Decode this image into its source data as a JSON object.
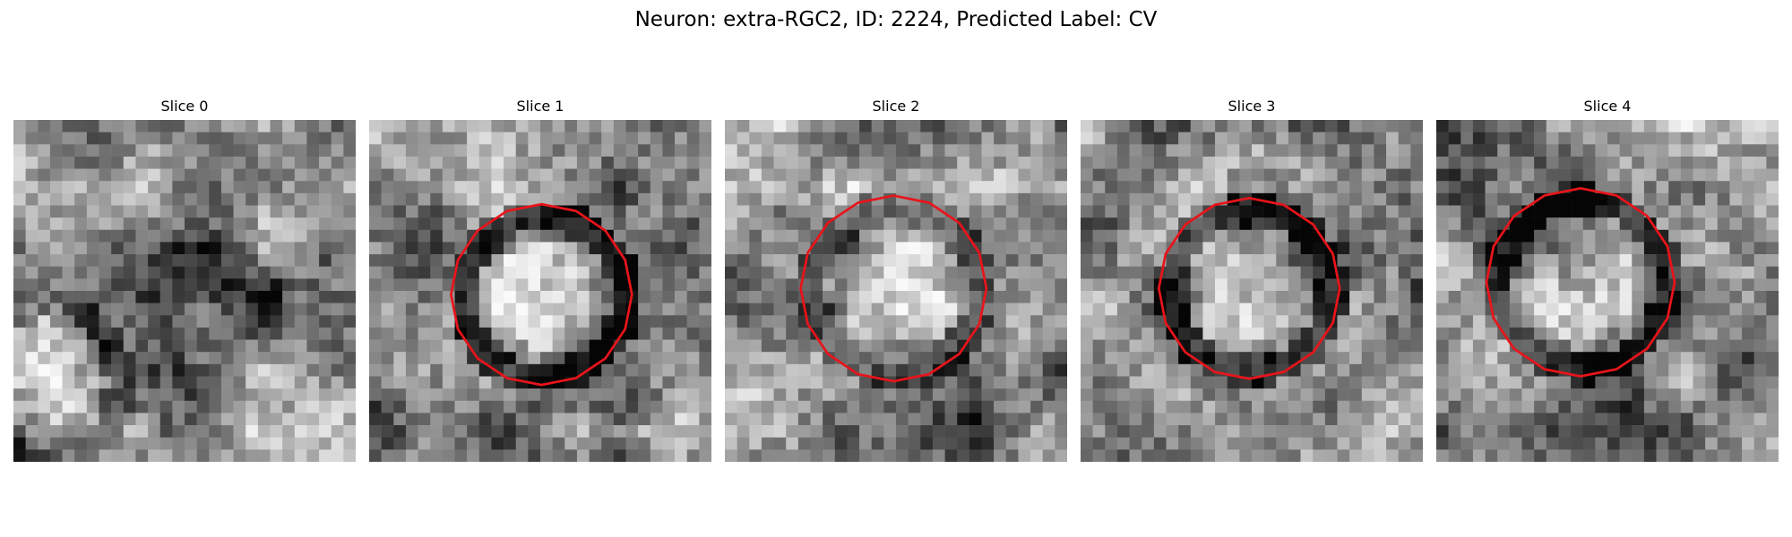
{
  "figure": {
    "title": "Neuron: extra-RGC2, ID: 2224, Predicted Label: CV"
  },
  "panels": [
    {
      "title": "Slice 0",
      "has_contour": false
    },
    {
      "title": "Slice 1",
      "has_contour": true
    },
    {
      "title": "Slice 2",
      "has_contour": true
    },
    {
      "title": "Slice 3",
      "has_contour": true
    },
    {
      "title": "Slice 4",
      "has_contour": true
    }
  ],
  "style": {
    "contour_color": "#e8141b",
    "colormap": "grayscale"
  }
}
